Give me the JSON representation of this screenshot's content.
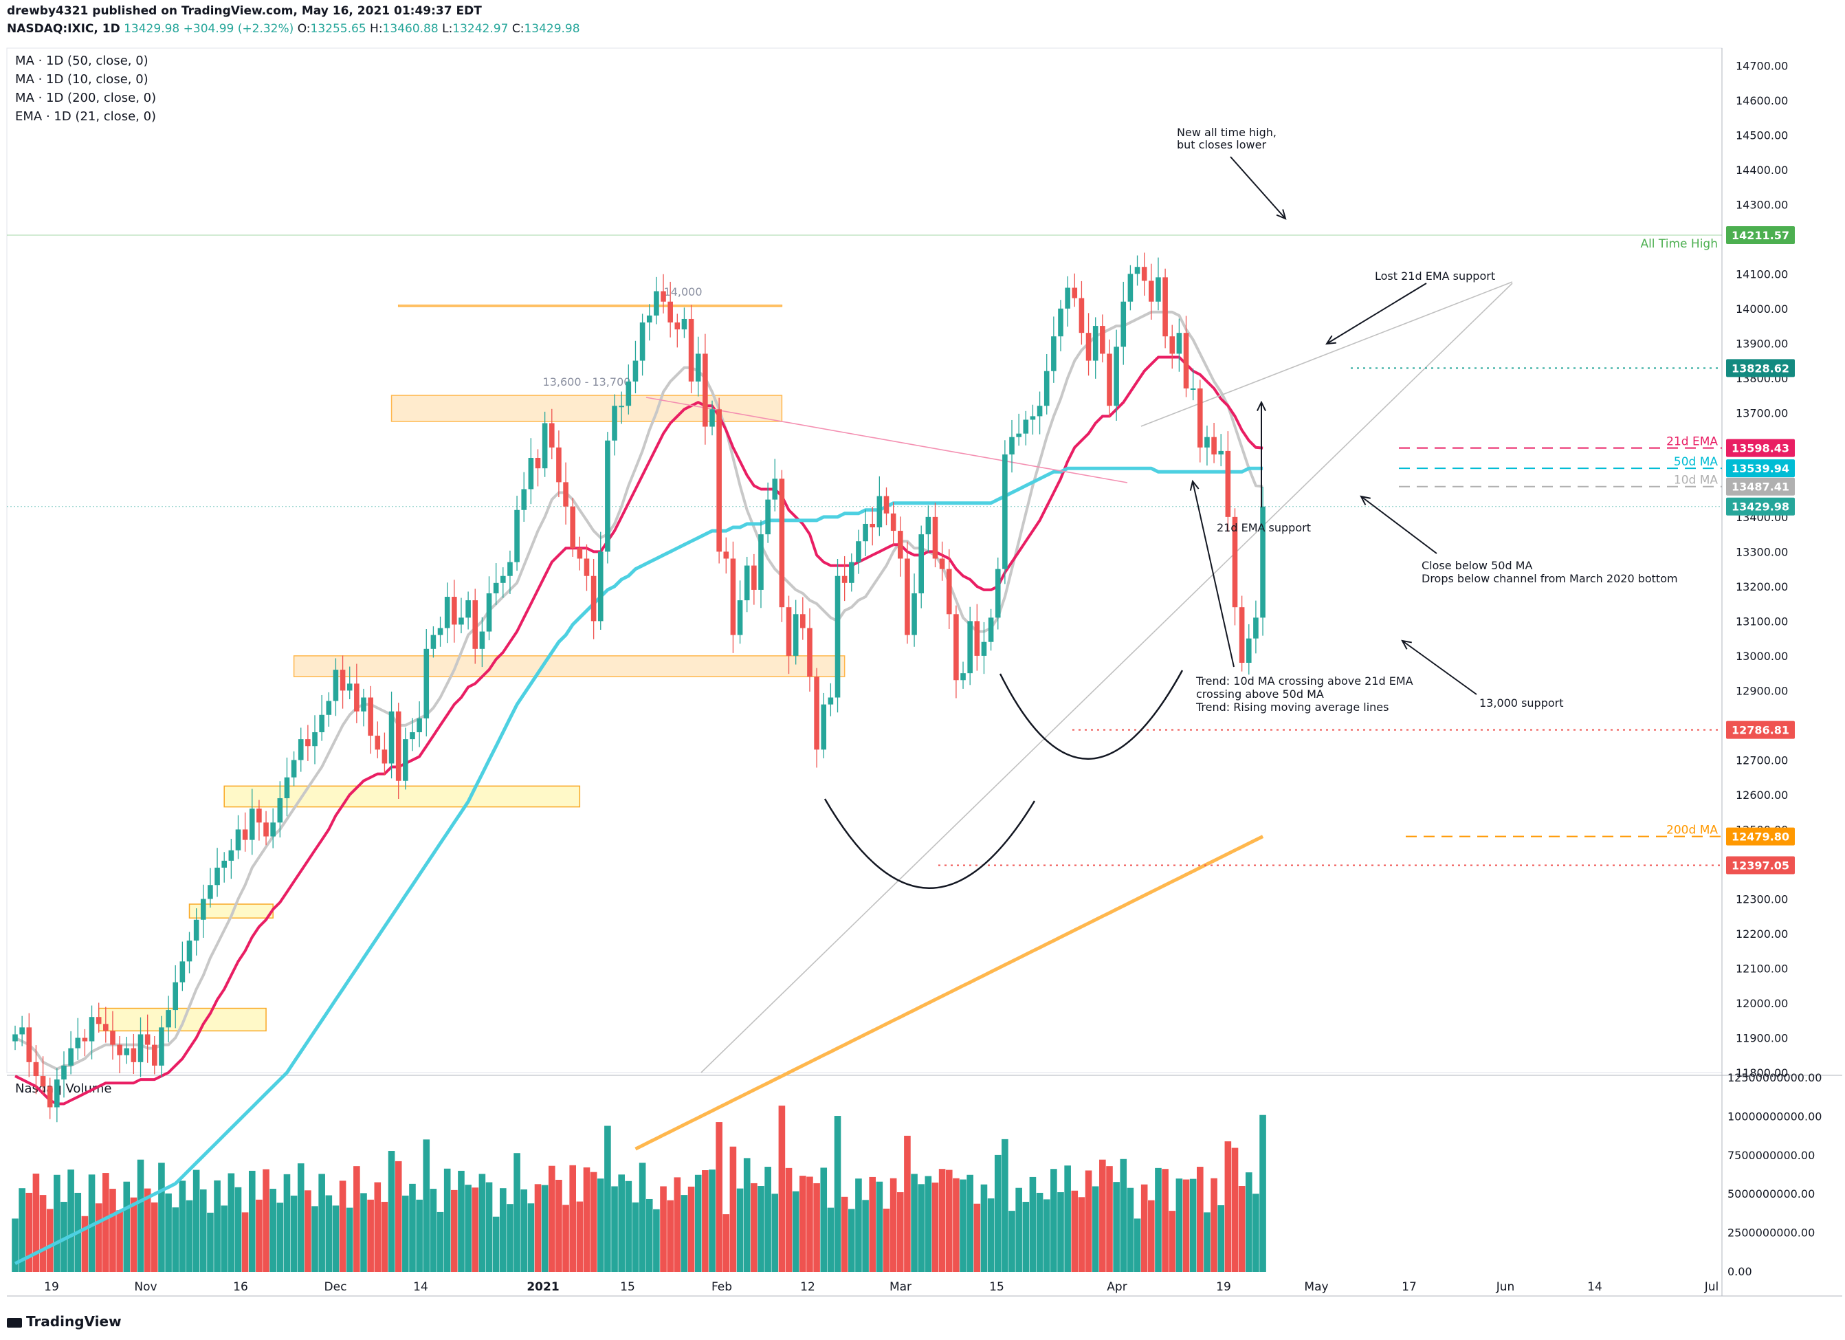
{
  "header": {
    "line1": "drewby4321 published on TradingView.com, May 16, 2021 01:49:37 EDT",
    "symbol": "NASDAQ:IXIC, 1D",
    "last": "13429.98",
    "change": "+304.99 (+2.32%)",
    "o": "13255.65",
    "h": "13460.88",
    "l": "13242.97",
    "c": "13429.98"
  },
  "indicators": [
    "MA · 1D (50, close, 0)",
    "MA · 1D (10, close, 0)",
    "MA · 1D (200, close, 0)",
    "EMA · 1D (21, close, 0)"
  ],
  "volume_label": "Nasdaq Volume",
  "brand": "TradingView",
  "colors": {
    "up": "#26a69a",
    "down": "#ef5350",
    "ema21": "#e91e63",
    "ma50": "#4dd0e1",
    "ma10": "#c8c8c8",
    "ma200": "#ffb74d",
    "ath": "#4caf50"
  },
  "chart_data": {
    "type": "candlestick",
    "ylim": [
      11800,
      14750
    ],
    "y_ticks": [
      "11800.00",
      "11900.00",
      "12000.00",
      "12100.00",
      "12200.00",
      "12300.00",
      "12400.00",
      "12500.00",
      "12600.00",
      "12700.00",
      "12800.00",
      "12900.00",
      "13000.00",
      "13100.00",
      "13200.00",
      "13300.00",
      "13400.00",
      "13500.00",
      "13600.00",
      "13700.00",
      "13800.00",
      "13900.00",
      "14000.00",
      "14100.00",
      "14200.00",
      "14300.00",
      "14400.00",
      "14500.00",
      "14600.00",
      "14700.00"
    ],
    "x_ticks": [
      "19",
      "Nov",
      "16",
      "Dec",
      "14",
      "2021",
      "15",
      "Feb",
      "12",
      "Mar",
      "15",
      "Apr",
      "19",
      "May",
      "17",
      "Jun",
      "14",
      "Jul"
    ],
    "price_labels": [
      {
        "text": "14211.57",
        "value": 14211.57,
        "color": "#4caf50",
        "name": "All Time High"
      },
      {
        "text": "13828.62",
        "value": 13828.62,
        "color": "#138a80",
        "name": ""
      },
      {
        "text": "13598.43",
        "value": 13598.43,
        "color": "#e91e63",
        "name": "21d EMA"
      },
      {
        "text": "13539.94",
        "value": 13539.94,
        "color": "#00bcd4",
        "name": "50d MA"
      },
      {
        "text": "13487.41",
        "value": 13487.41,
        "color": "#b0b0b0",
        "name": "10d MA"
      },
      {
        "text": "13429.98",
        "value": 13429.98,
        "color": "#26a69a",
        "name": ""
      },
      {
        "text": "12786.81",
        "value": 12786.81,
        "color": "#ef5350",
        "name": ""
      },
      {
        "text": "12479.80",
        "value": 12479.8,
        "color": "#ff9800",
        "name": "200d MA"
      },
      {
        "text": "12397.05",
        "value": 12397.05,
        "color": "#ef5350",
        "name": ""
      }
    ],
    "zones": [
      {
        "from": 14000,
        "to": 14010,
        "label": "14,000"
      },
      {
        "from": 13675,
        "to": 13750,
        "label": "13,600 - 13,700"
      },
      {
        "from": 12940,
        "to": 13000,
        "label": ""
      },
      {
        "from": 12565,
        "to": 12625,
        "label": ""
      },
      {
        "from": 12245,
        "to": 12285,
        "label": ""
      },
      {
        "from": 11920,
        "to": 11985,
        "label": ""
      }
    ],
    "vol_ticks": [
      "12500000000.00",
      "10000000000.00",
      "7500000000.00",
      "5000000000.00",
      "2500000000.00",
      "0.00"
    ],
    "vol_max": 12500000000,
    "closes": [
      11910,
      11930,
      11830,
      11790,
      11760,
      11700,
      11780,
      11820,
      11870,
      11900,
      11890,
      11960,
      11940,
      11920,
      11880,
      11850,
      11870,
      11830,
      11910,
      11880,
      11820,
      11930,
      11980,
      12060,
      12120,
      12180,
      12240,
      12300,
      12340,
      12390,
      12410,
      12440,
      12500,
      12470,
      12560,
      12520,
      12480,
      12520,
      12590,
      12650,
      12700,
      12760,
      12740,
      12780,
      12830,
      12870,
      12960,
      12900,
      12920,
      12840,
      12880,
      12770,
      12730,
      12690,
      12840,
      12640,
      12760,
      12780,
      12820,
      13020,
      13060,
      13080,
      13170,
      13090,
      13110,
      13160,
      13020,
      13070,
      13180,
      13210,
      13230,
      13270,
      13420,
      13480,
      13570,
      13540,
      13670,
      13600,
      13500,
      13430,
      13310,
      13280,
      13230,
      13100,
      13300,
      13620,
      13720,
      13720,
      13790,
      13850,
      13960,
      13980,
      14050,
      14020,
      13960,
      13940,
      13970,
      13790,
      13870,
      13660,
      13710,
      13300,
      13280,
      13060,
      13160,
      13260,
      13190,
      13350,
      13450,
      13510,
      13140,
      13000,
      13120,
      13080,
      12940,
      12730,
      12860,
      12880,
      13230,
      13210,
      13270,
      13330,
      13380,
      13370,
      13460,
      13410,
      13360,
      13280,
      13060,
      13180,
      13350,
      13400,
      13280,
      13250,
      13120,
      12930,
      12950,
      13100,
      13000,
      13040,
      13110,
      13250,
      13580,
      13630,
      13640,
      13680,
      13690,
      13720,
      13820,
      13920,
      14000,
      14060,
      14030,
      13930,
      13850,
      13950,
      13870,
      13720,
      13890,
      14020,
      14100,
      14120,
      14080,
      14020,
      14090,
      13920,
      13870,
      13930,
      13770,
      13770,
      13600,
      13630,
      13580,
      13590,
      13400,
      13140,
      12980,
      13050,
      13110,
      13430
    ],
    "ma10": [
      11900,
      11890,
      11880,
      11860,
      11830,
      11820,
      11810,
      11820,
      11820,
      11830,
      11840,
      11860,
      11870,
      11880,
      11880,
      11880,
      11880,
      11880,
      11880,
      11870,
      11870,
      11880,
      11880,
      11900,
      11940,
      11990,
      12040,
      12080,
      12130,
      12170,
      12210,
      12250,
      12300,
      12340,
      12390,
      12420,
      12450,
      12480,
      12500,
      12530,
      12560,
      12590,
      12620,
      12650,
      12680,
      12720,
      12760,
      12800,
      12830,
      12850,
      12860,
      12860,
      12850,
      12840,
      12830,
      12800,
      12800,
      12810,
      12820,
      12830,
      12850,
      12880,
      12920,
      12960,
      13010,
      13060,
      13080,
      13100,
      13130,
      13150,
      13170,
      13190,
      13210,
      13260,
      13310,
      13360,
      13400,
      13450,
      13470,
      13470,
      13450,
      13420,
      13390,
      13360,
      13340,
      13350,
      13380,
      13430,
      13490,
      13540,
      13590,
      13650,
      13700,
      13760,
      13790,
      13810,
      13830,
      13830,
      13820,
      13800,
      13760,
      13710,
      13650,
      13570,
      13490,
      13420,
      13370,
      13320,
      13280,
      13250,
      13230,
      13210,
      13190,
      13180,
      13160,
      13150,
      13130,
      13110,
      13100,
      13130,
      13140,
      13160,
      13170,
      13200,
      13230,
      13260,
      13300,
      13330,
      13330,
      13310,
      13310,
      13300,
      13290,
      13260,
      13210,
      13160,
      13110,
      13090,
      13070,
      13070,
      13080,
      13110,
      13170,
      13250,
      13330,
      13410,
      13490,
      13560,
      13630,
      13690,
      13740,
      13800,
      13850,
      13880,
      13900,
      13920,
      13930,
      13940,
      13950,
      13950,
      13960,
      13970,
      13980,
      13990,
      13990,
      13990,
      13990,
      13980,
      13940,
      13910,
      13870,
      13830,
      13790,
      13760,
      13720,
      13660,
      13600,
      13540,
      13490,
      13487.41
    ],
    "ema21": [
      11790,
      11780,
      11770,
      11760,
      11740,
      11720,
      11710,
      11710,
      11720,
      11730,
      11740,
      11750,
      11760,
      11770,
      11770,
      11770,
      11770,
      11770,
      11780,
      11780,
      11780,
      11790,
      11800,
      11820,
      11840,
      11870,
      11900,
      11940,
      11970,
      12010,
      12040,
      12080,
      12120,
      12150,
      12190,
      12220,
      12240,
      12270,
      12290,
      12320,
      12350,
      12380,
      12410,
      12440,
      12470,
      12500,
      12540,
      12570,
      12600,
      12620,
      12640,
      12650,
      12660,
      12660,
      12680,
      12680,
      12690,
      12700,
      12710,
      12740,
      12770,
      12800,
      12830,
      12860,
      12880,
      12910,
      12920,
      12940,
      12960,
      12990,
      13010,
      13040,
      13070,
      13110,
      13150,
      13190,
      13230,
      13270,
      13290,
      13310,
      13310,
      13310,
      13310,
      13300,
      13300,
      13330,
      13360,
      13400,
      13440,
      13480,
      13520,
      13560,
      13600,
      13640,
      13670,
      13690,
      13710,
      13720,
      13730,
      13720,
      13720,
      13690,
      13650,
      13600,
      13560,
      13520,
      13490,
      13480,
      13480,
      13480,
      13460,
      13420,
      13400,
      13380,
      13350,
      13290,
      13270,
      13260,
      13260,
      13260,
      13260,
      13270,
      13280,
      13290,
      13300,
      13310,
      13320,
      13320,
      13300,
      13290,
      13290,
      13300,
      13300,
      13290,
      13280,
      13250,
      13230,
      13220,
      13200,
      13190,
      13190,
      13200,
      13240,
      13270,
      13300,
      13330,
      13360,
      13390,
      13430,
      13470,
      13510,
      13560,
      13600,
      13620,
      13640,
      13670,
      13690,
      13690,
      13710,
      13730,
      13760,
      13790,
      13820,
      13840,
      13860,
      13860,
      13860,
      13860,
      13840,
      13820,
      13810,
      13790,
      13770,
      13740,
      13720,
      13690,
      13650,
      13620,
      13600,
      13598.43
    ],
    "ma50": [
      11250,
      11260,
      11270,
      11280,
      11290,
      11300,
      11310,
      11320,
      11330,
      11340,
      11350,
      11360,
      11370,
      11380,
      11390,
      11400,
      11410,
      11420,
      11430,
      11440,
      11450,
      11460,
      11470,
      11480,
      11500,
      11520,
      11540,
      11560,
      11580,
      11600,
      11620,
      11640,
      11660,
      11680,
      11700,
      11720,
      11740,
      11760,
      11780,
      11800,
      11830,
      11860,
      11890,
      11920,
      11950,
      11980,
      12010,
      12040,
      12070,
      12100,
      12130,
      12160,
      12190,
      12220,
      12250,
      12280,
      12310,
      12340,
      12370,
      12400,
      12430,
      12460,
      12490,
      12520,
      12550,
      12580,
      12620,
      12660,
      12700,
      12740,
      12780,
      12820,
      12860,
      12890,
      12920,
      12950,
      12980,
      13010,
      13040,
      13060,
      13090,
      13110,
      13130,
      13150,
      13170,
      13190,
      13200,
      13220,
      13230,
      13250,
      13260,
      13270,
      13280,
      13290,
      13300,
      13310,
      13320,
      13330,
      13340,
      13350,
      13360,
      13360,
      13360,
      13370,
      13370,
      13380,
      13380,
      13380,
      13390,
      13390,
      13390,
      13390,
      13390,
      13390,
      13390,
      13390,
      13400,
      13400,
      13400,
      13410,
      13410,
      13410,
      13420,
      13420,
      13420,
      13430,
      13440,
      13440,
      13440,
      13440,
      13440,
      13440,
      13440,
      13440,
      13440,
      13440,
      13440,
      13440,
      13440,
      13440,
      13440,
      13450,
      13460,
      13470,
      13480,
      13490,
      13500,
      13510,
      13520,
      13530,
      13530,
      13540,
      13540,
      13540,
      13540,
      13540,
      13540,
      13540,
      13540,
      13540,
      13540,
      13540,
      13540,
      13540,
      13530,
      13530,
      13530,
      13530,
      13530,
      13530,
      13530,
      13530,
      13530,
      13530,
      13530,
      13530,
      13530,
      13540,
      13540,
      13539.94
    ],
    "ma200": [
      11580,
      11590,
      11600,
      11610,
      11620,
      11630,
      11640,
      11650,
      11660,
      11670,
      11680,
      11690,
      11700,
      11710,
      11720,
      11730,
      11740,
      11750,
      11760,
      11770,
      11780,
      11790,
      11800,
      11810,
      11820,
      11830,
      11840,
      11850,
      11860,
      11870,
      11880,
      11890,
      11900,
      11910,
      11920,
      11930,
      11940,
      11950,
      11960,
      11970,
      11980,
      11990,
      12000,
      12010,
      12020,
      12030,
      12040,
      12050,
      12060,
      12070,
      12080,
      12090,
      12100,
      12110,
      12120,
      12130,
      12140,
      12150,
      12160,
      12170,
      12180,
      12190,
      12200,
      12210,
      12220,
      12230,
      12240,
      12250,
      12260,
      12270,
      12280,
      12290,
      12300,
      12310,
      12320,
      12330,
      12340,
      12350,
      12360,
      12370,
      12380,
      12390,
      12400,
      12410,
      12420,
      12430,
      12440,
      12450,
      12460,
      12470,
      12479.8
    ],
    "annotations": [
      "New all time high,",
      "but closes lower",
      "Lost 21d EMA support",
      "21d EMA support",
      "Close below 50d MA",
      "Drops below channel from March 2020 bottom",
      "Trend: 10d MA crossing above 21d EMA",
      "crossing above 50d MA",
      "Trend: Rising moving average lines",
      "13,000 support"
    ]
  }
}
